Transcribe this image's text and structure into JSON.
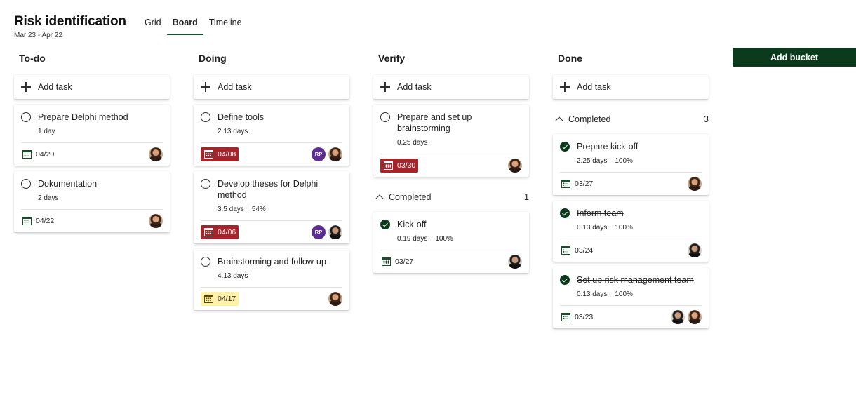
{
  "plan": {
    "title": "Risk identification",
    "dates": "Mar 23 - Apr 22"
  },
  "tabs": [
    {
      "label": "Grid"
    },
    {
      "label": "Board"
    },
    {
      "label": "Timeline"
    }
  ],
  "add_bucket_label": "Add bucket",
  "add_task_label": "Add task",
  "colors": {
    "accent": "#1a4d2e",
    "overdue": "#a4262c",
    "due_soon": "#fff1a8",
    "avatar_initials": "#5c2d91"
  },
  "buckets": [
    {
      "title": "To-do",
      "tasks": [
        {
          "title": "Prepare Delphi method",
          "duration": "1 day",
          "due": "04/20"
        },
        {
          "title": "Dokumentation",
          "duration": "2 days",
          "due": "04/22"
        }
      ]
    },
    {
      "title": "Doing",
      "tasks": [
        {
          "title": "Define tools",
          "duration": "2.13 days",
          "due": "04/08",
          "initials": "RP"
        },
        {
          "title": "Develop theses for Delphi method",
          "duration": "3.5 days",
          "progress": "54%",
          "due": "04/06",
          "initials": "RP"
        },
        {
          "title": "Brainstorming and follow-up",
          "duration": "4.13 days",
          "due": "04/17"
        }
      ]
    },
    {
      "title": "Verify",
      "tasks": [
        {
          "title": "Prepare and set up brainstorming",
          "duration": "0.25 days",
          "due": "03/30"
        }
      ],
      "completed_label": "Completed",
      "completed_count": "1",
      "completed": [
        {
          "title": "Kick-off",
          "duration": "0.19 days",
          "progress": "100%",
          "due": "03/27"
        }
      ]
    },
    {
      "title": "Done",
      "completed_label": "Completed",
      "completed_count": "3",
      "completed": [
        {
          "title": "Prepare kick-off",
          "duration": "2.25 days",
          "progress": "100%",
          "due": "03/27"
        },
        {
          "title": "Inform team",
          "duration": "0.13 days",
          "progress": "100%",
          "due": "03/24"
        },
        {
          "title": "Set up risk management team",
          "duration": "0.13 days",
          "progress": "100%",
          "due": "03/23"
        }
      ]
    }
  ]
}
